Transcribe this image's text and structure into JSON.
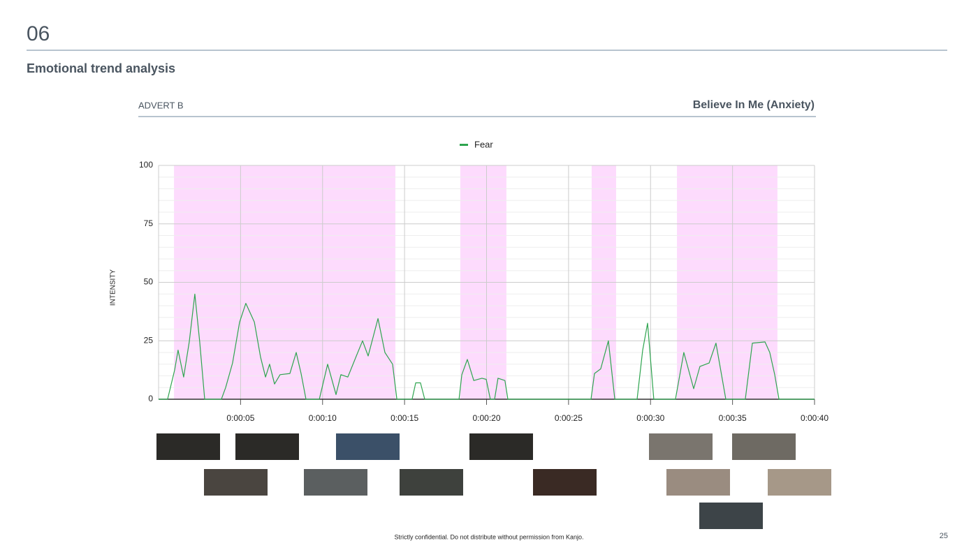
{
  "section_number": "06",
  "heading": "Emotional trend analysis",
  "advert_label": "ADVERT B",
  "footer": "Strictly confidential. Do not distribute without permission from Kanjo.",
  "page_number": "25",
  "chart_data": {
    "type": "line",
    "title": "Believe In Me (Anxiety)",
    "y_label": "INTENSITY",
    "x": [
      0,
      0.55,
      0.98,
      1.19,
      1.53,
      1.87,
      2.21,
      2.51,
      2.81,
      3.83,
      4.09,
      4.51,
      4.94,
      5.32,
      5.84,
      6.22,
      6.52,
      6.77,
      7.07,
      7.41,
      8.01,
      8.39,
      8.69,
      8.99,
      9.8,
      10.31,
      10.82,
      11.12,
      11.54,
      12.06,
      12.44,
      12.78,
      13.38,
      13.8,
      14.27,
      14.53,
      15.46,
      15.68,
      15.97,
      16.23,
      18.32,
      18.49,
      18.83,
      19.22,
      19.72,
      19.98,
      20.23,
      20.49,
      20.7,
      21.12,
      21.3,
      26.37,
      26.58,
      26.96,
      27.43,
      27.82,
      29.18,
      29.52,
      29.82,
      30.2,
      31.52,
      32.03,
      32.63,
      33.01,
      33.57,
      33.99,
      34.59,
      35.78,
      36.21,
      36.98,
      37.27,
      37.57,
      37.83,
      40
    ],
    "series": [
      {
        "name": "Fear",
        "color": "#2ea44f",
        "values": [
          0,
          0,
          12.5,
          21,
          9.5,
          24.5,
          45,
          24.5,
          0,
          0,
          5,
          15.5,
          33,
          41,
          33,
          18,
          9.5,
          15,
          6.5,
          10.5,
          11,
          20,
          11,
          0,
          0,
          15,
          2,
          10.5,
          9.5,
          18.5,
          25,
          18.5,
          34.5,
          20,
          15,
          0,
          0,
          7,
          7,
          0,
          0,
          10.5,
          17,
          8,
          9,
          8.5,
          0,
          0,
          9,
          8,
          0,
          0,
          11,
          13,
          25,
          0,
          0,
          21,
          32.5,
          0,
          0,
          20,
          4.5,
          14,
          15.5,
          24,
          0,
          0,
          24,
          24.5,
          20,
          10.5,
          0,
          0
        ]
      }
    ],
    "highlight_ranges": [
      [
        0.94,
        14.44
      ],
      [
        18.4,
        21.21
      ],
      [
        26.41,
        27.9
      ],
      [
        31.61,
        37.74
      ]
    ],
    "highlight_color": "#fdd5fd",
    "xlim": [
      0,
      40
    ],
    "xticks": [
      {
        "value": 5,
        "label": "0:00:05"
      },
      {
        "value": 10,
        "label": "0:00:10"
      },
      {
        "value": 15,
        "label": "0:00:15"
      },
      {
        "value": 20,
        "label": "0:00:20"
      },
      {
        "value": 25,
        "label": "0:00:25"
      },
      {
        "value": 30,
        "label": "0:00:30"
      },
      {
        "value": 35,
        "label": "0:00:35"
      },
      {
        "value": 40,
        "label": "0:00:40"
      }
    ],
    "ylim": [
      0,
      100
    ],
    "yticks": [
      0,
      25,
      50,
      75,
      100
    ],
    "grid": true,
    "legend": "top"
  }
}
